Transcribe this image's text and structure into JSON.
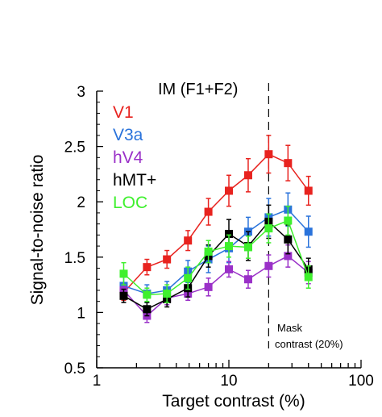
{
  "chart_data": {
    "type": "line",
    "title": "IM (F1+F2)",
    "xlabel": "Target contrast (%)",
    "ylabel": "Signal-to-noise ratio",
    "x_scale": "log",
    "xlim": [
      1,
      100
    ],
    "ylim": [
      0.5,
      3
    ],
    "x_ticks": [
      1,
      10,
      100
    ],
    "x_tick_labels": [
      "1",
      "10",
      "100"
    ],
    "y_ticks": [
      0.5,
      1,
      1.5,
      2,
      2.5,
      3
    ],
    "y_tick_labels": [
      "0.5",
      "1",
      "1.5",
      "2",
      "2.5",
      "3"
    ],
    "x": [
      1.6,
      2.4,
      3.4,
      4.9,
      7,
      10,
      14,
      20,
      28,
      40
    ],
    "series": [
      {
        "name": "V1",
        "color": "#e8231f",
        "values": [
          1.18,
          1.41,
          1.48,
          1.65,
          1.91,
          2.1,
          2.24,
          2.43,
          2.35,
          2.1
        ],
        "errors": [
          0.07,
          0.07,
          0.08,
          0.09,
          0.12,
          0.14,
          0.15,
          0.17,
          0.16,
          0.13
        ]
      },
      {
        "name": "V3a",
        "color": "#2a73db",
        "values": [
          1.24,
          1.17,
          1.2,
          1.37,
          1.48,
          1.58,
          1.73,
          1.86,
          1.93,
          1.73
        ],
        "errors": [
          0.08,
          0.08,
          0.08,
          0.1,
          0.12,
          0.13,
          0.13,
          0.17,
          0.15,
          0.14
        ]
      },
      {
        "name": "hV4",
        "color": "#9a30c8",
        "values": [
          1.2,
          0.97,
          1.13,
          1.17,
          1.23,
          1.39,
          1.3,
          1.42,
          1.51,
          1.36
        ],
        "errors": [
          0.05,
          0.06,
          0.06,
          0.06,
          0.08,
          0.07,
          0.08,
          0.1,
          0.1,
          0.1
        ]
      },
      {
        "name": "hMT+",
        "color": "#000000",
        "values": [
          1.15,
          1.03,
          1.12,
          1.22,
          1.51,
          1.71,
          1.6,
          1.82,
          1.66,
          1.39
        ],
        "errors": [
          0.06,
          0.06,
          0.07,
          0.08,
          0.1,
          0.13,
          0.13,
          0.15,
          0.13,
          0.1
        ]
      },
      {
        "name": "LOC",
        "color": "#3ef02d",
        "values": [
          1.35,
          1.16,
          1.17,
          1.31,
          1.55,
          1.6,
          1.59,
          1.76,
          1.83,
          1.32
        ],
        "errors": [
          0.1,
          0.06,
          0.08,
          0.1,
          0.1,
          0.1,
          0.1,
          0.13,
          0.13,
          0.1
        ]
      }
    ],
    "mask_line": {
      "x": 20,
      "label_line1": "Mask",
      "label_line2": "contrast (20%)"
    },
    "legend": "top-left",
    "grid": false
  }
}
